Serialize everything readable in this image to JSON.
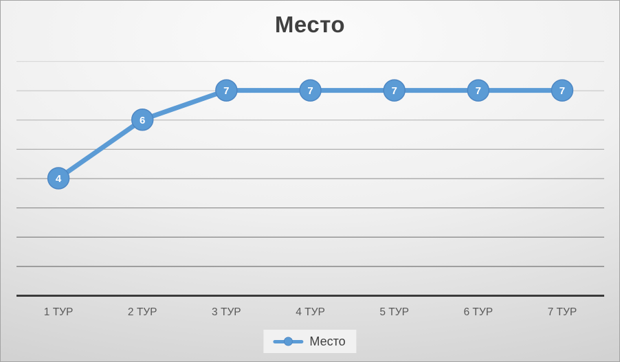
{
  "chart_data": {
    "type": "line",
    "title": "Место",
    "categories": [
      "1 ТУР",
      "2 ТУР",
      "3 ТУР",
      "4 ТУР",
      "5 ТУР",
      "6 ТУР",
      "7 ТУР"
    ],
    "series": [
      {
        "name": "Место",
        "values": [
          4,
          6,
          7,
          7,
          7,
          7,
          7
        ]
      }
    ],
    "xlabel": "",
    "ylabel": "",
    "ylim": [
      0,
      8
    ],
    "grid": true,
    "y_axis_labels_visible": false,
    "data_labels": true,
    "legend_position": "bottom"
  },
  "colors": {
    "line": "#5B9BD5",
    "marker_fill": "#5B9BD5",
    "marker_border": "#4d87c4",
    "data_label_text": "#ffffff",
    "title_text": "#404040",
    "tick_text": "#595959",
    "axis_line": "#3a3a3a",
    "grid_top": "#d9d9d9",
    "grid_bottom": "#757575",
    "legend_bg": "#f1f1f1",
    "legend_text": "#3f3f3f"
  }
}
